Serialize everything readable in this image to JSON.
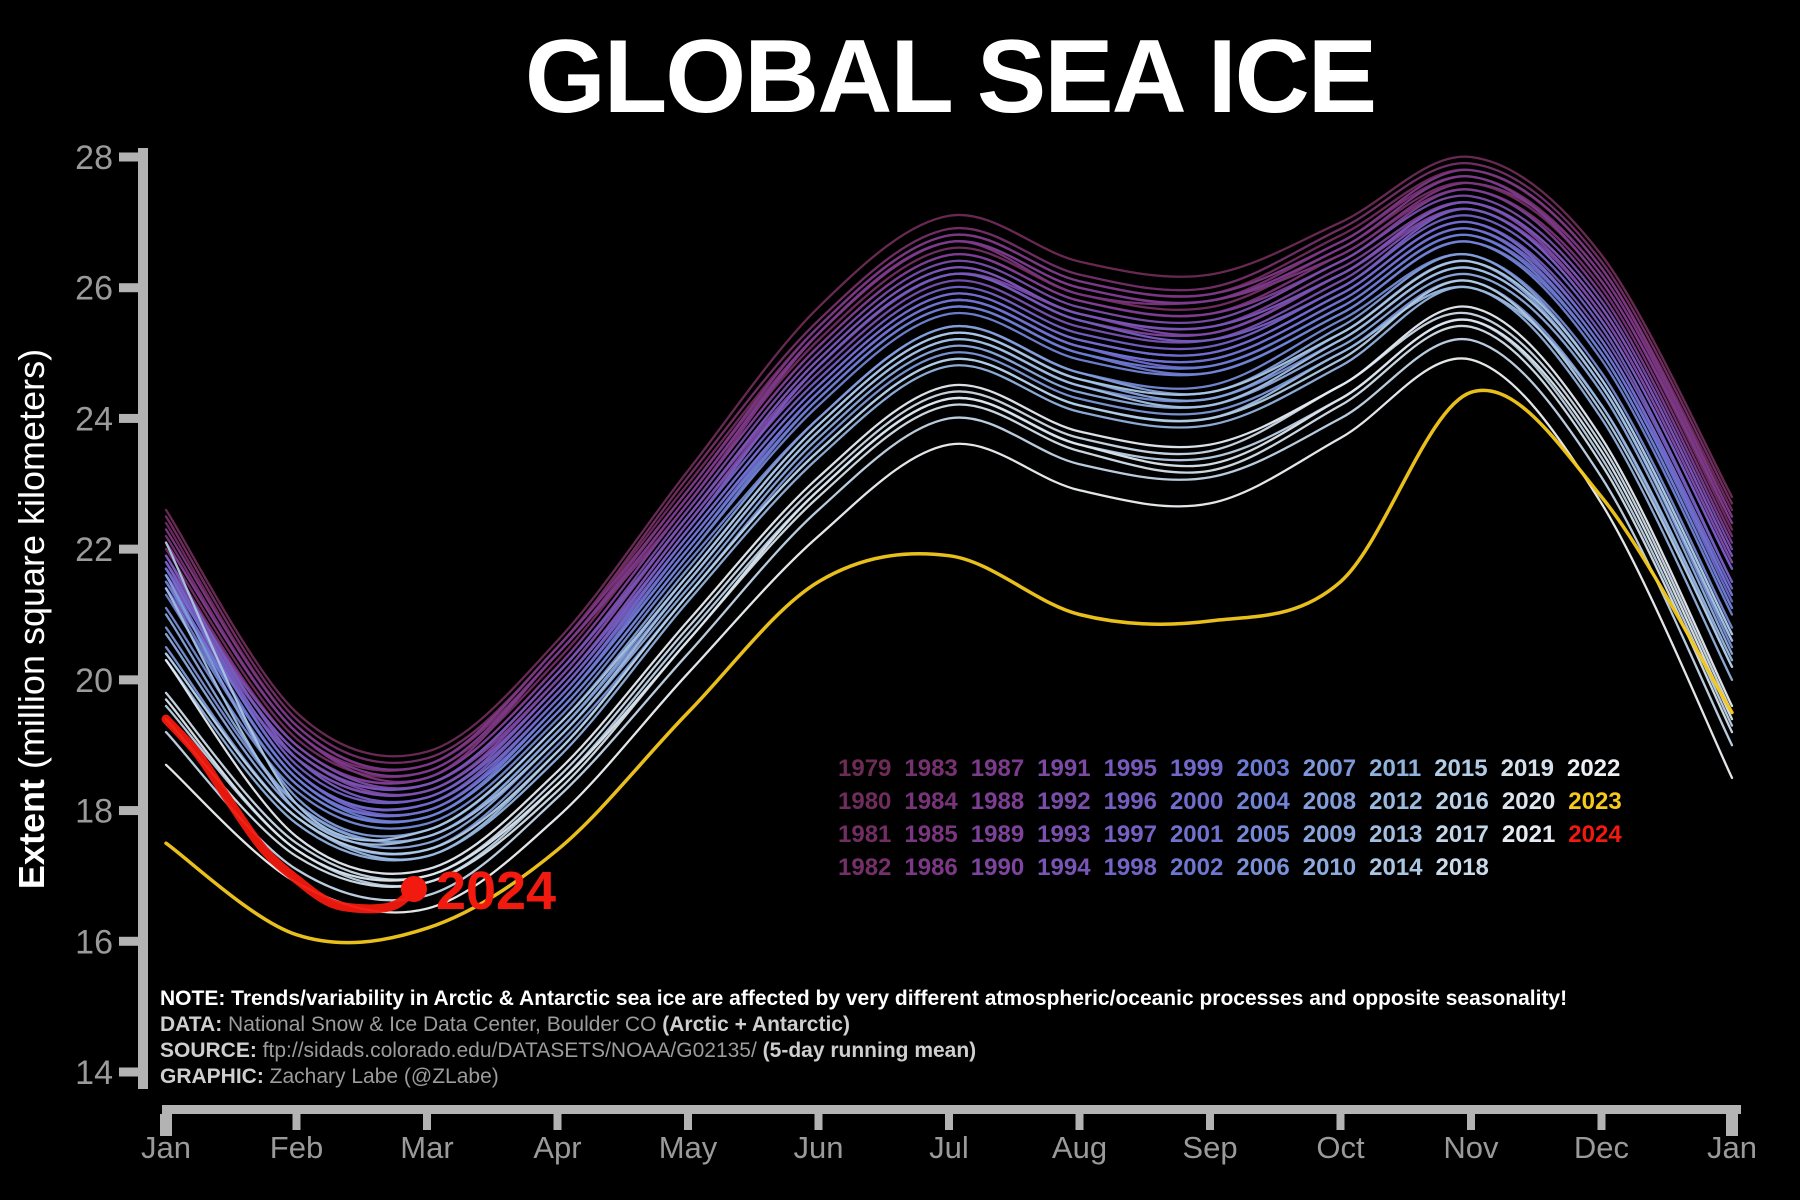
{
  "title": "GLOBAL SEA ICE",
  "y_axis_label": {
    "bold": "Extent",
    "rest": " (million square kilometers)"
  },
  "notes": [
    {
      "prefix": "NOTE:",
      "text": " Trends/variability in Arctic & Antarctic sea ice are affected by very different atmospheric/oceanic processes and opposite seasonality!",
      "suffix": "",
      "style": "white"
    },
    {
      "prefix": "DATA:",
      "text": " National Snow & Ice Data Center, Boulder CO ",
      "suffix": "(Arctic + Antarctic)",
      "style": "grey"
    },
    {
      "prefix": "SOURCE:",
      "text": " ftp://sidads.colorado.edu/DATASETS/NOAA/G02135/ ",
      "suffix": "(5-day running mean)",
      "style": "grey"
    },
    {
      "prefix": "GRAPHIC:",
      "text": " Zachary Labe (@ZLabe)",
      "suffix": "",
      "style": "grey"
    }
  ],
  "colors": {
    "background": "#000000",
    "axis": "#b3b3b3",
    "tick_text": "#9a9a9a",
    "title_text": "#ffffff",
    "highlight_2023": "#f6c91c",
    "highlight_2024": "#f2190e"
  },
  "chart_data": {
    "type": "line",
    "title": "GLOBAL SEA ICE",
    "ylabel": "Extent (million square kilometers)",
    "xlabel": "",
    "ylim": [
      14,
      28
    ],
    "xlim_months": [
      0,
      12
    ],
    "grid": false,
    "y_ticks": [
      "28",
      "26",
      "24",
      "22",
      "20",
      "18",
      "16",
      "14"
    ],
    "y_tick_values": [
      28,
      26,
      24,
      22,
      20,
      18,
      16,
      14
    ],
    "x_tick_labels": [
      "Jan",
      "Feb",
      "Mar",
      "Apr",
      "May",
      "Jun",
      "Jul",
      "Aug",
      "Sep",
      "Oct",
      "Nov",
      "Dec",
      "Jan"
    ],
    "x_tick_months": [
      0,
      1,
      2,
      3,
      4,
      5,
      6,
      7,
      8,
      9,
      10,
      11,
      12
    ],
    "x_months": [
      0,
      1,
      2,
      3,
      4,
      5,
      6,
      7,
      8,
      9,
      10,
      11,
      12
    ],
    "units": "million square kilometers",
    "legend_rows": [
      [
        "1979",
        "1983",
        "1987",
        "1991",
        "1995",
        "1999",
        "2003",
        "2007",
        "2011",
        "2015",
        "2019",
        "2022"
      ],
      [
        "1980",
        "1984",
        "1988",
        "1992",
        "1996",
        "2000",
        "2004",
        "2008",
        "2012",
        "2016",
        "2020",
        "2023"
      ],
      [
        "1981",
        "1985",
        "1989",
        "1993",
        "1997",
        "2001",
        "2005",
        "2009",
        "2013",
        "2017",
        "2021",
        "2024"
      ],
      [
        "1982",
        "1986",
        "1990",
        "1994",
        "1998",
        "2002",
        "2006",
        "2010",
        "2014",
        "2018"
      ]
    ],
    "series": [
      {
        "name": "1979",
        "color": "#6e2b55",
        "values": [
          22.6,
          19.5,
          18.9,
          20.6,
          23.2,
          25.7,
          27.1,
          26.4,
          26.2,
          27.0,
          28.0,
          26.5,
          22.8
        ]
      },
      {
        "name": "1980",
        "color": "#702c5c",
        "values": [
          22.4,
          19.3,
          18.7,
          20.5,
          23.0,
          25.4,
          26.8,
          26.1,
          25.9,
          26.8,
          27.8,
          26.3,
          22.6
        ]
      },
      {
        "name": "1981",
        "color": "#722e62",
        "values": [
          22.0,
          19.1,
          18.6,
          20.3,
          22.8,
          25.2,
          26.6,
          25.9,
          25.7,
          26.6,
          27.6,
          26.1,
          22.3
        ]
      },
      {
        "name": "1982",
        "color": "#752f69",
        "values": [
          22.5,
          19.4,
          18.8,
          20.5,
          23.1,
          25.5,
          26.9,
          26.2,
          26.0,
          26.9,
          27.9,
          26.4,
          22.7
        ]
      },
      {
        "name": "1983",
        "color": "#773170",
        "values": [
          22.2,
          19.2,
          18.7,
          20.4,
          22.9,
          25.3,
          26.7,
          26.0,
          25.8,
          26.7,
          27.7,
          26.2,
          22.5
        ]
      },
      {
        "name": "1984",
        "color": "#793378",
        "values": [
          21.9,
          19.0,
          18.5,
          20.2,
          22.7,
          25.1,
          26.5,
          25.8,
          25.6,
          26.5,
          27.5,
          26.0,
          22.2
        ]
      },
      {
        "name": "1985",
        "color": "#7a367f",
        "values": [
          22.1,
          19.2,
          18.5,
          20.4,
          22.7,
          25.3,
          26.7,
          25.9,
          25.8,
          26.5,
          27.6,
          26.2,
          22.4
        ]
      },
      {
        "name": "1986",
        "color": "#7c3887",
        "values": [
          22.3,
          19.3,
          18.7,
          20.5,
          22.9,
          25.4,
          26.8,
          26.1,
          25.9,
          26.7,
          27.8,
          26.3,
          22.5
        ]
      },
      {
        "name": "1987",
        "color": "#7d3b8e",
        "values": [
          22.1,
          19.2,
          18.6,
          20.4,
          22.8,
          25.3,
          26.7,
          26.0,
          25.8,
          26.6,
          27.7,
          26.1,
          22.4
        ]
      },
      {
        "name": "1988",
        "color": "#7d3e94",
        "values": [
          21.8,
          19.0,
          18.5,
          20.2,
          22.7,
          25.1,
          26.5,
          25.8,
          25.6,
          26.4,
          27.5,
          25.9,
          22.1
        ]
      },
      {
        "name": "1989",
        "color": "#7d429a",
        "values": [
          21.6,
          18.9,
          18.4,
          20.0,
          22.5,
          24.9,
          26.3,
          25.6,
          25.4,
          26.3,
          27.3,
          25.7,
          21.9
        ]
      },
      {
        "name": "1990",
        "color": "#7d459f",
        "values": [
          21.5,
          18.8,
          18.3,
          19.9,
          22.4,
          24.8,
          26.2,
          25.5,
          25.3,
          26.2,
          27.2,
          25.6,
          21.8
        ]
      },
      {
        "name": "1991",
        "color": "#7c49a5",
        "values": [
          21.6,
          18.9,
          18.3,
          20.0,
          22.5,
          24.8,
          26.2,
          25.6,
          25.3,
          26.2,
          27.3,
          25.6,
          21.8
        ]
      },
      {
        "name": "1992",
        "color": "#7b4dab",
        "values": [
          21.7,
          19.0,
          18.4,
          20.1,
          22.6,
          25.0,
          26.4,
          25.7,
          25.5,
          26.4,
          27.4,
          25.8,
          22.0
        ]
      },
      {
        "name": "1993",
        "color": "#7a51b1",
        "values": [
          21.4,
          18.8,
          18.3,
          19.9,
          22.4,
          24.7,
          26.1,
          25.4,
          25.2,
          26.1,
          27.2,
          25.5,
          21.7
        ]
      },
      {
        "name": "1994",
        "color": "#7955b6",
        "values": [
          21.7,
          18.9,
          18.4,
          20.1,
          22.5,
          24.9,
          26.3,
          25.6,
          25.4,
          26.2,
          27.3,
          25.7,
          21.9
        ]
      },
      {
        "name": "1995",
        "color": "#7859bc",
        "values": [
          21.8,
          18.6,
          18.1,
          19.8,
          22.2,
          24.5,
          25.9,
          25.2,
          25.0,
          25.9,
          27.0,
          25.3,
          21.5
        ]
      },
      {
        "name": "1996",
        "color": "#765dc0",
        "values": [
          21.9,
          18.8,
          18.2,
          19.9,
          22.3,
          24.8,
          26.2,
          25.5,
          25.2,
          26.0,
          27.2,
          25.5,
          21.7
        ]
      },
      {
        "name": "1997",
        "color": "#7560c4",
        "values": [
          21.8,
          18.7,
          18.2,
          19.8,
          22.3,
          24.6,
          26.0,
          25.3,
          25.1,
          26.0,
          27.1,
          25.4,
          21.5
        ]
      },
      {
        "name": "1998",
        "color": "#7364c7",
        "values": [
          21.7,
          18.6,
          18.0,
          19.7,
          22.1,
          24.4,
          25.8,
          25.1,
          24.9,
          25.8,
          26.9,
          25.2,
          21.3
        ]
      },
      {
        "name": "1999",
        "color": "#7168cb",
        "values": [
          21.5,
          18.5,
          18.0,
          19.6,
          22.0,
          24.4,
          25.8,
          25.1,
          24.8,
          25.7,
          26.8,
          25.1,
          21.2
        ]
      },
      {
        "name": "2000",
        "color": "#706dcd",
        "values": [
          21.7,
          18.6,
          18.1,
          19.7,
          22.2,
          24.5,
          25.9,
          25.2,
          25.0,
          25.9,
          27.0,
          25.2,
          21.4
        ]
      },
      {
        "name": "2001",
        "color": "#6f72cf",
        "values": [
          21.6,
          18.5,
          18.0,
          19.6,
          22.1,
          24.4,
          25.8,
          25.1,
          24.9,
          25.8,
          26.9,
          25.1,
          21.3
        ]
      },
      {
        "name": "2002",
        "color": "#6e77d0",
        "values": [
          21.4,
          18.4,
          17.9,
          19.5,
          21.9,
          24.3,
          25.7,
          25.0,
          24.7,
          25.6,
          26.7,
          25.0,
          21.1
        ]
      },
      {
        "name": "2003",
        "color": "#6c7cd2",
        "values": [
          21.5,
          18.5,
          17.9,
          19.6,
          22.0,
          24.3,
          25.7,
          25.0,
          24.8,
          25.7,
          26.8,
          25.0,
          21.1
        ]
      },
      {
        "name": "2004",
        "color": "#7183d4",
        "values": [
          21.3,
          18.4,
          17.9,
          19.5,
          21.9,
          24.2,
          25.6,
          24.9,
          24.7,
          25.6,
          26.7,
          24.9,
          21.0
        ]
      },
      {
        "name": "2005",
        "color": "#758ad5",
        "values": [
          21.1,
          18.3,
          17.8,
          19.4,
          21.8,
          24.0,
          25.4,
          24.7,
          24.5,
          25.5,
          26.5,
          24.7,
          20.8
        ]
      },
      {
        "name": "2006",
        "color": "#7a90d7",
        "values": [
          20.8,
          18.1,
          17.6,
          19.2,
          21.5,
          23.8,
          25.2,
          24.5,
          24.3,
          25.2,
          26.3,
          24.5,
          20.5
        ]
      },
      {
        "name": "2007",
        "color": "#7e97d8",
        "values": [
          20.5,
          17.9,
          17.4,
          19.0,
          21.3,
          23.6,
          25.0,
          24.3,
          24.1,
          25.0,
          26.1,
          24.2,
          20.2
        ]
      },
      {
        "name": "2008",
        "color": "#839eda",
        "values": [
          21.6,
          18.2,
          17.7,
          19.3,
          21.7,
          24.0,
          25.4,
          24.7,
          24.4,
          25.4,
          26.5,
          24.6,
          20.7
        ]
      },
      {
        "name": "2009",
        "color": "#88a5db",
        "values": [
          21.0,
          18.1,
          17.6,
          19.2,
          21.6,
          23.9,
          25.3,
          24.6,
          24.3,
          25.3,
          26.4,
          24.5,
          20.6
        ]
      },
      {
        "name": "2010",
        "color": "#8dabdd",
        "values": [
          20.7,
          18.0,
          17.5,
          19.1,
          21.4,
          23.7,
          25.1,
          24.4,
          24.2,
          25.1,
          26.2,
          24.4,
          20.4
        ]
      },
      {
        "name": "2011",
        "color": "#92b2de",
        "values": [
          20.3,
          17.8,
          17.3,
          18.8,
          21.2,
          23.4,
          24.8,
          24.1,
          23.9,
          24.8,
          26.0,
          24.0,
          20.0
        ]
      },
      {
        "name": "2012",
        "color": "#9ab9e0",
        "values": [
          20.4,
          17.9,
          17.3,
          18.9,
          21.3,
          23.5,
          24.9,
          24.2,
          24.0,
          25.0,
          26.0,
          24.2,
          20.3
        ]
      },
      {
        "name": "2013",
        "color": "#a2bfe2",
        "values": [
          21.4,
          18.0,
          17.6,
          19.1,
          21.5,
          23.8,
          25.2,
          24.5,
          24.2,
          25.2,
          26.3,
          24.5,
          20.6
        ]
      },
      {
        "name": "2014",
        "color": "#aac6e3",
        "values": [
          22.1,
          18.1,
          17.7,
          19.3,
          21.6,
          23.9,
          25.3,
          24.6,
          24.4,
          25.3,
          26.4,
          24.6,
          20.7
        ]
      },
      {
        "name": "2015",
        "color": "#b2cce5",
        "values": [
          20.4,
          17.9,
          17.4,
          18.9,
          21.3,
          23.5,
          24.9,
          24.2,
          24.0,
          24.9,
          26.1,
          24.1,
          20.2
        ]
      },
      {
        "name": "2016",
        "color": "#bbd1e7",
        "values": [
          19.6,
          17.4,
          16.9,
          18.4,
          20.7,
          22.9,
          24.3,
          23.6,
          23.4,
          24.3,
          25.5,
          23.4,
          19.3
        ]
      },
      {
        "name": "2017",
        "color": "#c3d6e8",
        "values": [
          19.2,
          17.1,
          16.7,
          18.2,
          20.4,
          22.6,
          24.0,
          23.3,
          23.1,
          24.0,
          25.2,
          23.1,
          19.0
        ]
      },
      {
        "name": "2018",
        "color": "#ccdbea",
        "values": [
          19.8,
          17.5,
          17.0,
          18.5,
          20.8,
          23.0,
          24.4,
          23.7,
          23.5,
          24.5,
          25.6,
          23.6,
          19.5
        ]
      },
      {
        "name": "2019",
        "color": "#d4e0eb",
        "values": [
          19.4,
          17.3,
          16.9,
          18.3,
          20.6,
          22.8,
          24.2,
          23.5,
          23.2,
          24.2,
          25.4,
          23.3,
          19.2
        ]
      },
      {
        "name": "2020",
        "color": "#dde6ee",
        "values": [
          19.7,
          17.4,
          17.0,
          18.4,
          20.6,
          22.9,
          24.3,
          23.6,
          23.3,
          24.3,
          25.5,
          23.5,
          19.4
        ]
      },
      {
        "name": "2021",
        "color": "#e6ecf2",
        "values": [
          20.3,
          17.6,
          17.1,
          18.6,
          20.9,
          23.1,
          24.5,
          23.8,
          23.6,
          24.5,
          25.7,
          23.7,
          19.6
        ]
      },
      {
        "name": "2022",
        "color": "#eff2f5",
        "values": [
          18.7,
          16.9,
          16.5,
          17.9,
          20.1,
          22.2,
          23.6,
          22.9,
          22.7,
          23.7,
          24.9,
          22.7,
          18.5
        ]
      },
      {
        "name": "2023",
        "color": "#f6c91c",
        "width": 3.5,
        "values": [
          17.5,
          16.1,
          16.2,
          17.4,
          19.5,
          21.5,
          21.9,
          21.0,
          20.9,
          21.5,
          24.4,
          22.8,
          19.5
        ]
      },
      {
        "name": "2024",
        "color": "#f2190e",
        "width": 9,
        "dot": true,
        "label": "2024",
        "x": [
          0,
          0.25,
          0.5,
          0.75,
          1.0,
          1.25,
          1.5,
          1.75,
          1.9
        ],
        "values": [
          19.4,
          18.85,
          18.1,
          17.4,
          16.95,
          16.6,
          16.5,
          16.55,
          16.8
        ]
      }
    ]
  }
}
